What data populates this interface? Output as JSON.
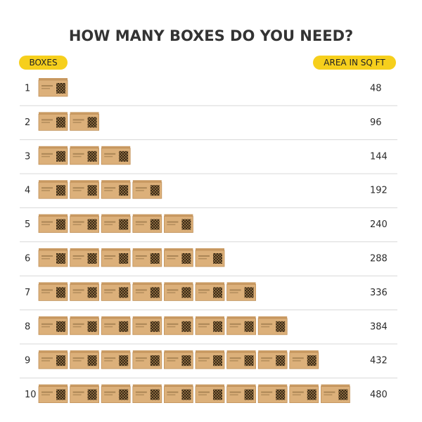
{
  "title": "HOW MANY BOXES DO YOU NEED?",
  "headers": {
    "boxes": "BOXES",
    "area": "AREA IN SQ FT"
  },
  "rows": [
    {
      "boxes": 1,
      "area": 48
    },
    {
      "boxes": 2,
      "area": 96
    },
    {
      "boxes": 3,
      "area": 144
    },
    {
      "boxes": 4,
      "area": 192
    },
    {
      "boxes": 5,
      "area": 240
    },
    {
      "boxes": 6,
      "area": 288
    },
    {
      "boxes": 7,
      "area": 336
    },
    {
      "boxes": 8,
      "area": 384
    },
    {
      "boxes": 9,
      "area": 432
    },
    {
      "boxes": 10,
      "area": 480
    }
  ]
}
